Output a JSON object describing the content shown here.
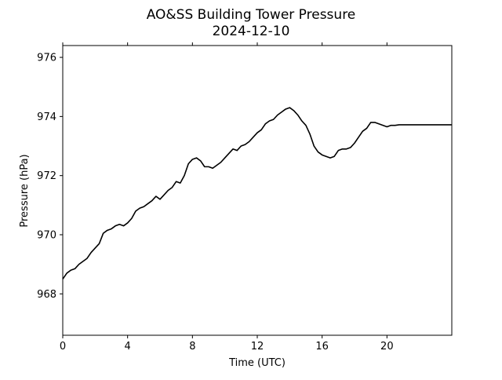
{
  "chart_data": {
    "type": "line",
    "title": "AO&SS Building Tower Pressure",
    "subtitle": "2024-12-10",
    "xlabel": "Time (UTC)",
    "ylabel": "Pressure (hPa)",
    "xlim": [
      0,
      24
    ],
    "ylim": [
      966.6,
      976.4
    ],
    "xticks": [
      0,
      4,
      8,
      12,
      16,
      20
    ],
    "xtick_labels": [
      "0",
      "4",
      "8",
      "12",
      "16",
      "20"
    ],
    "yticks": [
      968,
      970,
      972,
      974,
      976
    ],
    "ytick_labels": [
      "968",
      "970",
      "972",
      "974",
      "976"
    ],
    "grid": false,
    "line_color": "#000000",
    "series": [
      {
        "x": [
          0,
          0.25,
          0.5,
          0.75,
          1.0,
          1.25,
          1.5,
          1.75,
          2.0,
          2.25,
          2.5,
          2.75,
          3.0,
          3.25,
          3.5,
          3.75,
          4.0,
          4.25,
          4.5,
          4.75,
          5.0,
          5.25,
          5.5,
          5.75,
          6.0,
          6.25,
          6.5,
          6.75,
          7.0,
          7.25,
          7.5,
          7.75,
          8.0,
          8.25,
          8.5,
          8.75,
          9.0,
          9.25,
          9.5,
          9.75,
          10.0,
          10.25,
          10.5,
          10.75,
          11.0,
          11.25,
          11.5,
          11.75,
          12.0,
          12.25,
          12.5,
          12.75,
          13.0,
          13.25,
          13.5,
          13.75,
          14.0,
          14.25,
          14.5,
          14.75,
          15.0,
          15.25,
          15.5,
          15.75,
          16.0,
          16.25,
          16.5,
          16.75,
          17.0,
          17.25,
          17.5,
          17.75,
          18.0,
          18.25,
          18.5,
          18.75,
          19.0,
          19.25,
          19.5,
          19.75,
          20.0,
          20.25,
          20.5,
          20.75,
          21.0,
          21.25,
          21.5,
          21.75,
          22.0,
          22.25,
          22.5,
          22.75,
          23.0,
          23.25,
          23.5,
          23.75,
          24.0
        ],
        "y": [
          968.5,
          968.7,
          968.8,
          968.85,
          969.0,
          969.1,
          969.2,
          969.4,
          969.55,
          969.7,
          970.05,
          970.15,
          970.2,
          970.3,
          970.35,
          970.3,
          970.4,
          970.55,
          970.8,
          970.9,
          970.95,
          971.05,
          971.15,
          971.3,
          971.2,
          971.35,
          971.5,
          971.6,
          971.8,
          971.75,
          972.0,
          972.4,
          972.55,
          972.6,
          972.5,
          972.3,
          972.3,
          972.25,
          972.35,
          972.45,
          972.6,
          972.75,
          972.9,
          972.85,
          973.0,
          973.05,
          973.15,
          973.3,
          973.45,
          973.55,
          973.75,
          973.85,
          973.9,
          974.05,
          974.15,
          974.25,
          974.3,
          974.2,
          974.05,
          973.85,
          973.7,
          973.4,
          973.0,
          972.8,
          972.7,
          972.65,
          972.6,
          972.65,
          972.85,
          972.9,
          972.9,
          972.95,
          973.1,
          973.3,
          973.5,
          973.6,
          973.8,
          973.8,
          973.75,
          973.7,
          973.65,
          973.7,
          973.7,
          973.72,
          973.72,
          973.72,
          973.72,
          973.72,
          973.72,
          973.72,
          973.72,
          973.72,
          973.72,
          973.72,
          973.72,
          973.72,
          973.72
        ]
      }
    ]
  }
}
